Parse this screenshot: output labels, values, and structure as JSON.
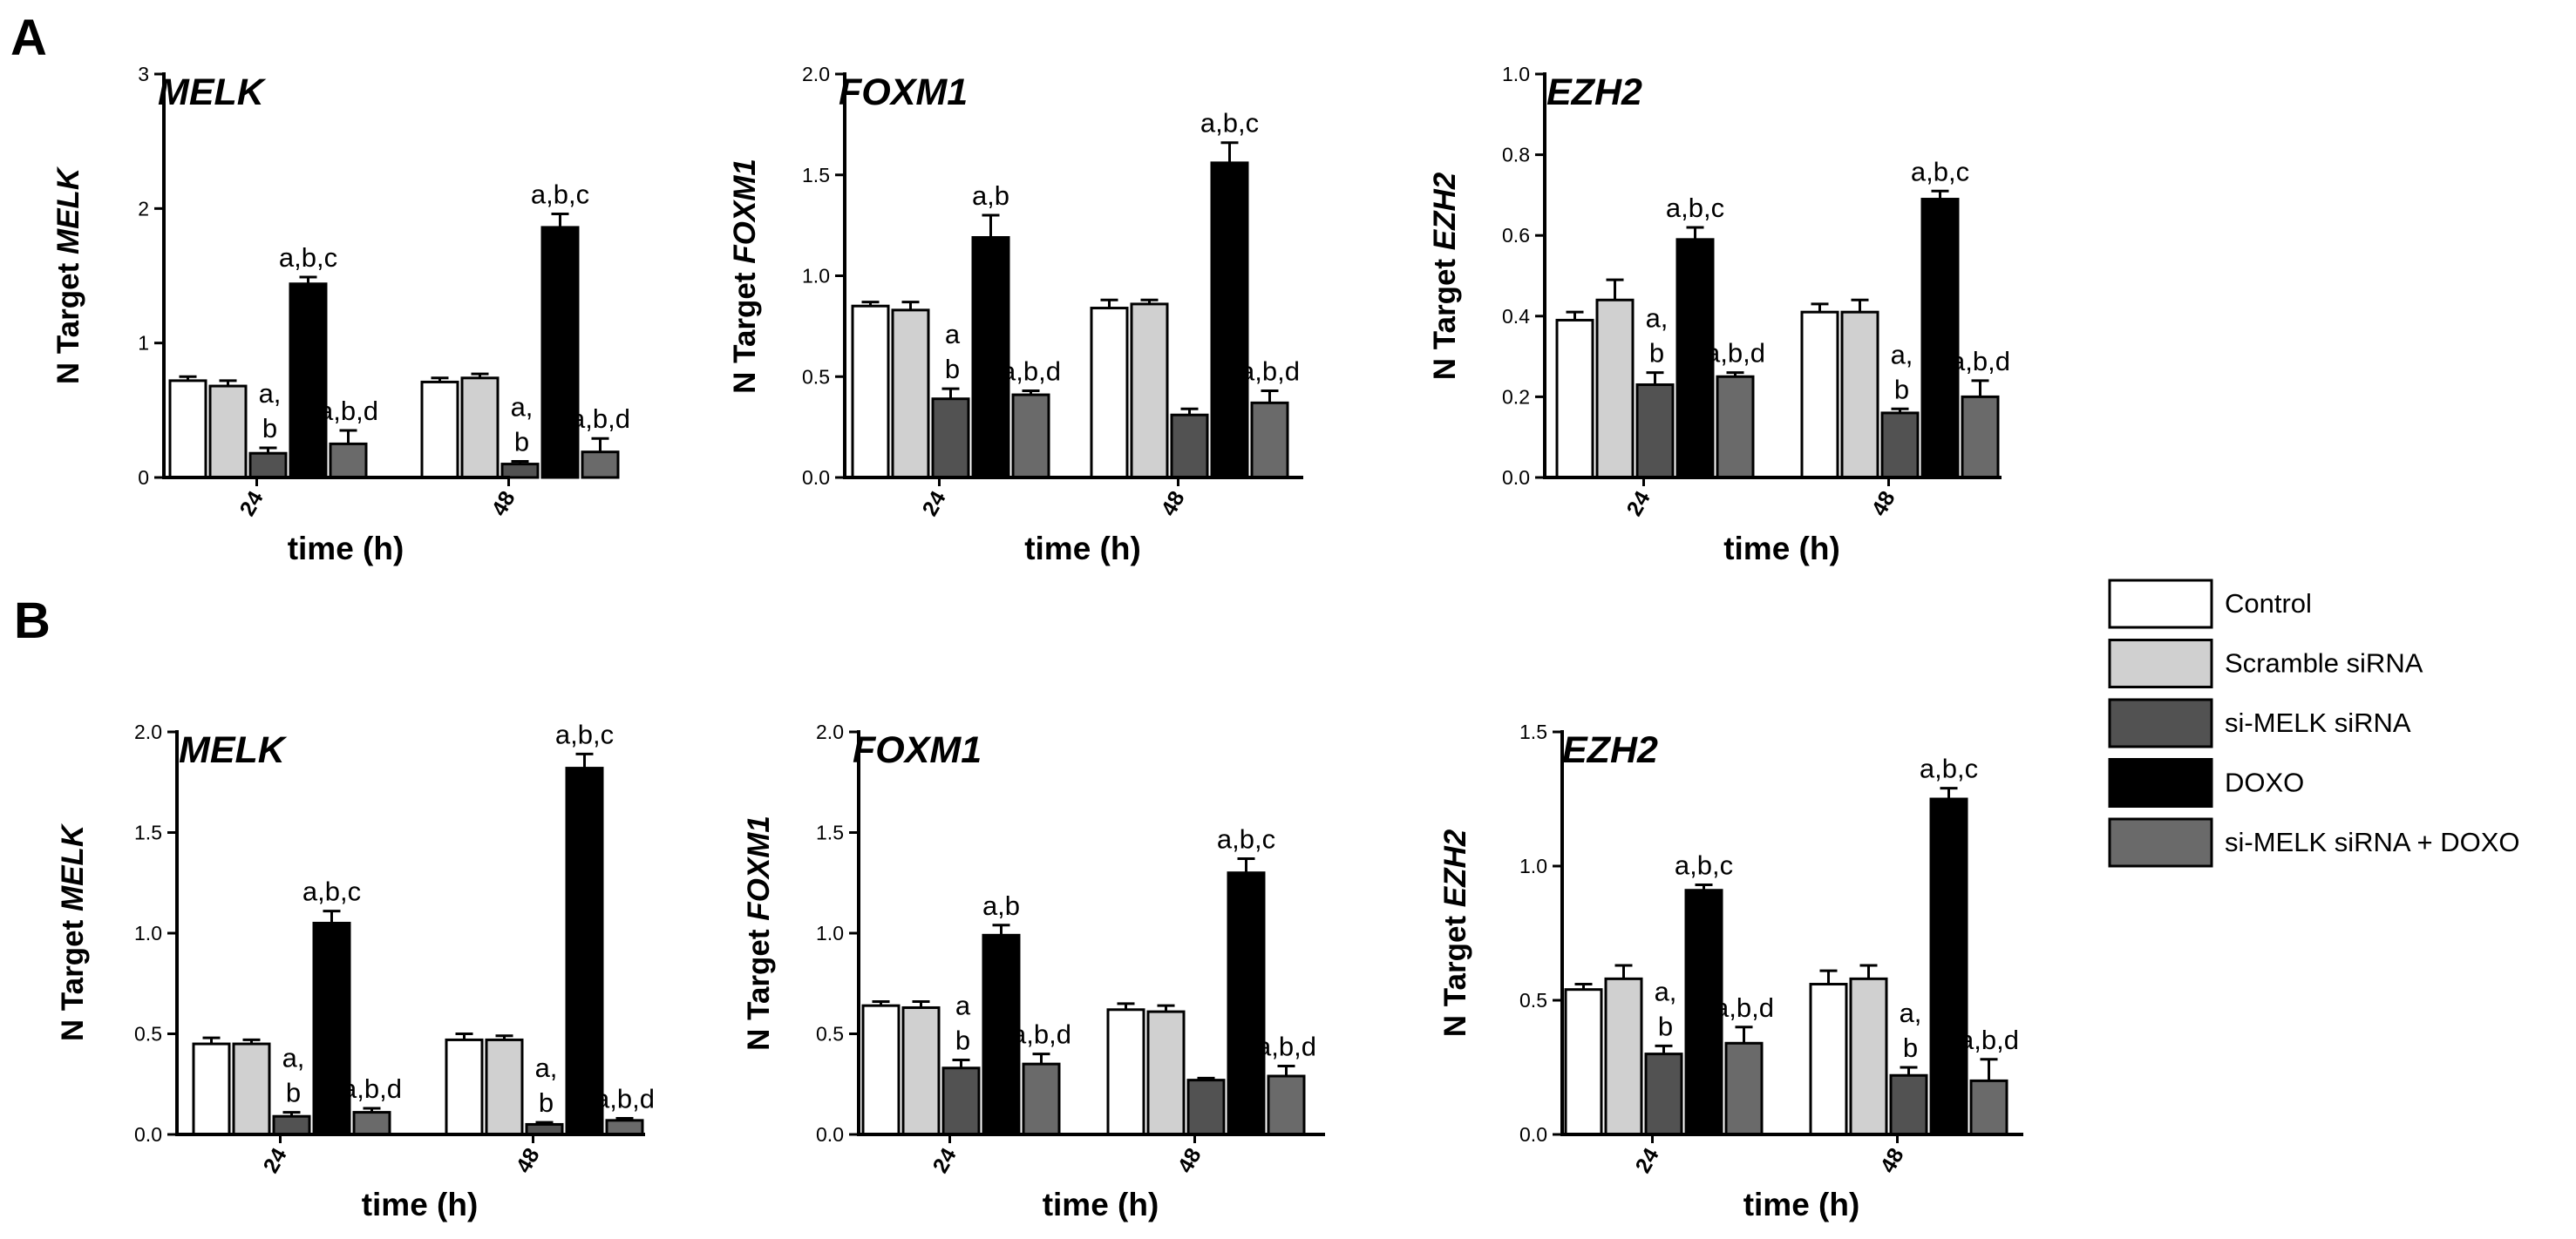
{
  "colors": {
    "Control": "#ffffff",
    "Scramble siRNA": "#d0d0d0",
    "si-MELK siRNA": "#525252",
    "DOXO": "#000000",
    "si-MELK siRNA + DOXO": "#6a6a6a"
  },
  "panels": [
    {
      "label": "A"
    },
    {
      "label": "B"
    }
  ],
  "legend": [
    "Control",
    "Scramble siRNA",
    "si-MELK siRNA",
    "DOXO",
    "si-MELK siRNA + DOXO"
  ],
  "chart_data": [
    {
      "type": "bar",
      "panel": "A",
      "gene": "MELK",
      "title": "MELK",
      "ylabel_prefix": "N Target ",
      "ylabel_gene": "MELK",
      "xlabel": "time (h)",
      "categories": [
        "24",
        "48"
      ],
      "ylim": [
        0,
        3
      ],
      "yticks": [
        "0",
        "1",
        "2",
        "3"
      ],
      "ytick_values": [
        0,
        1,
        2,
        3
      ],
      "series": [
        {
          "name": "Control",
          "values": [
            0.72,
            0.71
          ],
          "errors": [
            0.03,
            0.03
          ],
          "labels": [
            "",
            ""
          ]
        },
        {
          "name": "Scramble siRNA",
          "values": [
            0.68,
            0.74
          ],
          "errors": [
            0.04,
            0.03
          ],
          "labels": [
            "",
            ""
          ]
        },
        {
          "name": "si-MELK siRNA",
          "values": [
            0.18,
            0.1
          ],
          "errors": [
            0.04,
            0.02
          ],
          "labels": [
            "a,\nb",
            "a,\nb"
          ]
        },
        {
          "name": "DOXO",
          "values": [
            1.44,
            1.86
          ],
          "errors": [
            0.05,
            0.1
          ],
          "labels": [
            "a,b,c",
            "a,b,c"
          ]
        },
        {
          "name": "si-MELK siRNA + DOXO",
          "values": [
            0.25,
            0.19
          ],
          "errors": [
            0.1,
            0.1
          ],
          "labels": [
            "a,b,d",
            "a,b,d"
          ]
        }
      ]
    },
    {
      "type": "bar",
      "panel": "A",
      "gene": "FOXM1",
      "title": "FOXM1",
      "ylabel_prefix": "N Target ",
      "ylabel_gene": "FOXM1",
      "xlabel": "time (h)",
      "categories": [
        "24",
        "48"
      ],
      "ylim": [
        0,
        2
      ],
      "yticks": [
        "0.0",
        "0.5",
        "1.0",
        "1.5",
        "2.0"
      ],
      "ytick_values": [
        0,
        0.5,
        1,
        1.5,
        2
      ],
      "series": [
        {
          "name": "Control",
          "values": [
            0.85,
            0.84
          ],
          "errors": [
            0.02,
            0.04
          ],
          "labels": [
            "",
            ""
          ]
        },
        {
          "name": "Scramble siRNA",
          "values": [
            0.83,
            0.86
          ],
          "errors": [
            0.04,
            0.02
          ],
          "labels": [
            "",
            ""
          ]
        },
        {
          "name": "si-MELK siRNA",
          "values": [
            0.39,
            0.31
          ],
          "errors": [
            0.05,
            0.03
          ],
          "labels": [
            "a\nb",
            ""
          ]
        },
        {
          "name": "DOXO",
          "values": [
            1.19,
            1.56
          ],
          "errors": [
            0.11,
            0.1
          ],
          "labels": [
            "a,b",
            "a,b,c"
          ]
        },
        {
          "name": "si-MELK siRNA + DOXO",
          "values": [
            0.41,
            0.37
          ],
          "errors": [
            0.02,
            0.06
          ],
          "labels": [
            "a,b,d",
            "a,b,d"
          ]
        }
      ]
    },
    {
      "type": "bar",
      "panel": "A",
      "gene": "EZH2",
      "title": "EZH2",
      "ylabel_prefix": "N Target ",
      "ylabel_gene": "EZH2",
      "xlabel": "time (h)",
      "categories": [
        "24",
        "48"
      ],
      "ylim": [
        0,
        1
      ],
      "yticks": [
        "0.0",
        "0.2",
        "0.4",
        "0.6",
        "0.8",
        "1.0"
      ],
      "ytick_values": [
        0,
        0.2,
        0.4,
        0.6,
        0.8,
        1
      ],
      "series": [
        {
          "name": "Control",
          "values": [
            0.39,
            0.41
          ],
          "errors": [
            0.02,
            0.02
          ],
          "labels": [
            "",
            ""
          ]
        },
        {
          "name": "Scramble siRNA",
          "values": [
            0.44,
            0.41
          ],
          "errors": [
            0.05,
            0.03
          ],
          "labels": [
            "",
            ""
          ]
        },
        {
          "name": "si-MELK siRNA",
          "values": [
            0.23,
            0.16
          ],
          "errors": [
            0.03,
            0.01
          ],
          "labels": [
            "a,\nb",
            "a,\nb"
          ]
        },
        {
          "name": "DOXO",
          "values": [
            0.59,
            0.69
          ],
          "errors": [
            0.03,
            0.02
          ],
          "labels": [
            "a,b,c",
            "a,b,c"
          ]
        },
        {
          "name": "si-MELK siRNA + DOXO",
          "values": [
            0.25,
            0.2
          ],
          "errors": [
            0.01,
            0.04
          ],
          "labels": [
            "a,b,d",
            "a,b,d"
          ]
        }
      ]
    },
    {
      "type": "bar",
      "panel": "B",
      "gene": "MELK",
      "title": "MELK",
      "ylabel_prefix": "N Target ",
      "ylabel_gene": "MELK",
      "xlabel": "time (h)",
      "categories": [
        "24",
        "48"
      ],
      "ylim": [
        0,
        2
      ],
      "yticks": [
        "0.0",
        "0.5",
        "1.0",
        "1.5",
        "2.0"
      ],
      "ytick_values": [
        0,
        0.5,
        1,
        1.5,
        2
      ],
      "series": [
        {
          "name": "Control",
          "values": [
            0.45,
            0.47
          ],
          "errors": [
            0.03,
            0.03
          ],
          "labels": [
            "",
            ""
          ]
        },
        {
          "name": "Scramble siRNA",
          "values": [
            0.45,
            0.47
          ],
          "errors": [
            0.02,
            0.02
          ],
          "labels": [
            "",
            ""
          ]
        },
        {
          "name": "si-MELK siRNA",
          "values": [
            0.09,
            0.05
          ],
          "errors": [
            0.02,
            0.01
          ],
          "labels": [
            "a,\nb",
            "a,\nb"
          ]
        },
        {
          "name": "DOXO",
          "values": [
            1.05,
            1.82
          ],
          "errors": [
            0.06,
            0.07
          ],
          "labels": [
            "a,b,c",
            "a,b,c"
          ]
        },
        {
          "name": "si-MELK siRNA + DOXO",
          "values": [
            0.11,
            0.07
          ],
          "errors": [
            0.02,
            0.01
          ],
          "labels": [
            "a,b,d",
            "a,b,d"
          ]
        }
      ]
    },
    {
      "type": "bar",
      "panel": "B",
      "gene": "FOXM1",
      "title": "FOXM1",
      "ylabel_prefix": "N Target ",
      "ylabel_gene": "FOXM1",
      "xlabel": "time (h)",
      "categories": [
        "24",
        "48"
      ],
      "ylim": [
        0,
        2
      ],
      "yticks": [
        "0.0",
        "0.5",
        "1.0",
        "1.5",
        "2.0"
      ],
      "ytick_values": [
        0,
        0.5,
        1,
        1.5,
        2
      ],
      "series": [
        {
          "name": "Control",
          "values": [
            0.64,
            0.62
          ],
          "errors": [
            0.02,
            0.03
          ],
          "labels": [
            "",
            ""
          ]
        },
        {
          "name": "Scramble siRNA",
          "values": [
            0.63,
            0.61
          ],
          "errors": [
            0.03,
            0.03
          ],
          "labels": [
            "",
            ""
          ]
        },
        {
          "name": "si-MELK siRNA",
          "values": [
            0.33,
            0.27
          ],
          "errors": [
            0.04,
            0.01
          ],
          "labels": [
            "a\nb",
            ""
          ]
        },
        {
          "name": "DOXO",
          "values": [
            0.99,
            1.3
          ],
          "errors": [
            0.05,
            0.07
          ],
          "labels": [
            "a,b",
            "a,b,c"
          ]
        },
        {
          "name": "si-MELK siRNA + DOXO",
          "values": [
            0.35,
            0.29
          ],
          "errors": [
            0.05,
            0.05
          ],
          "labels": [
            "a,b,d",
            "a,b,d"
          ]
        }
      ]
    },
    {
      "type": "bar",
      "panel": "B",
      "gene": "EZH2",
      "title": "EZH2",
      "ylabel_prefix": "N Target ",
      "ylabel_gene": "EZH2",
      "xlabel": "time (h)",
      "categories": [
        "24",
        "48"
      ],
      "ylim": [
        0,
        1.5
      ],
      "yticks": [
        "0.0",
        "0.5",
        "1.0",
        "1.5"
      ],
      "ytick_values": [
        0,
        0.5,
        1,
        1.5
      ],
      "series": [
        {
          "name": "Control",
          "values": [
            0.54,
            0.56
          ],
          "errors": [
            0.02,
            0.05
          ],
          "labels": [
            "",
            ""
          ]
        },
        {
          "name": "Scramble siRNA",
          "values": [
            0.58,
            0.58
          ],
          "errors": [
            0.05,
            0.05
          ],
          "labels": [
            "",
            ""
          ]
        },
        {
          "name": "si-MELK siRNA",
          "values": [
            0.3,
            0.22
          ],
          "errors": [
            0.03,
            0.03
          ],
          "labels": [
            "a,\nb",
            "a,\nb"
          ]
        },
        {
          "name": "DOXO",
          "values": [
            0.91,
            1.25
          ],
          "errors": [
            0.02,
            0.04
          ],
          "labels": [
            "a,b,c",
            "a,b,c"
          ]
        },
        {
          "name": "si-MELK siRNA + DOXO",
          "values": [
            0.34,
            0.2
          ],
          "errors": [
            0.06,
            0.08
          ],
          "labels": [
            "a,b,d",
            "a,b,d"
          ]
        }
      ]
    }
  ]
}
